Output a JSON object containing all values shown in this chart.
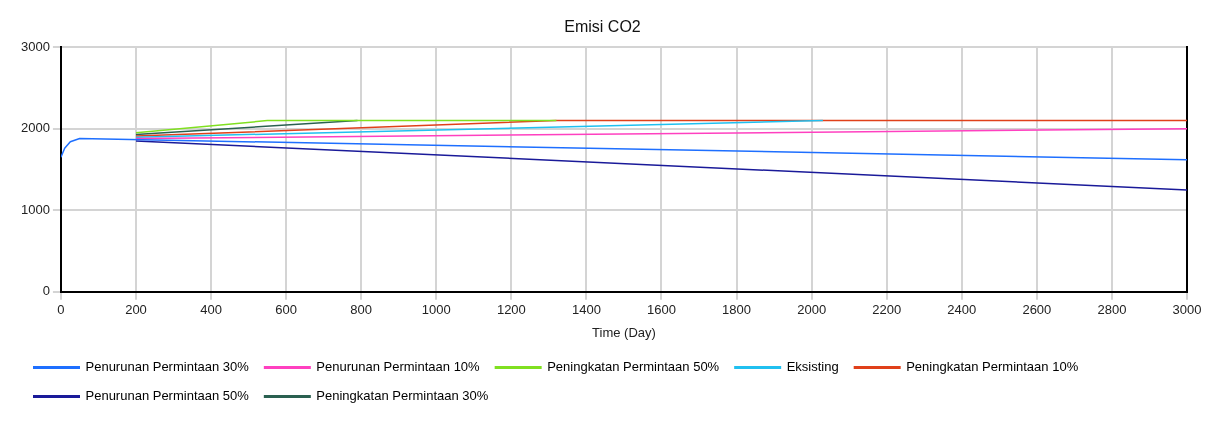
{
  "chart_data": {
    "type": "line",
    "title": "Emisi CO2",
    "xlabel": "Time (Day)",
    "xlim": [
      0,
      3000
    ],
    "xticks": [
      0,
      200,
      400,
      600,
      800,
      1000,
      1200,
      1400,
      1600,
      1800,
      2000,
      2200,
      2400,
      2600,
      2800,
      3000
    ],
    "ylim": [
      0,
      3000
    ],
    "yticks": [
      0,
      1000,
      2000,
      3000
    ],
    "grid": true,
    "legend": "bottom",
    "marker": "none",
    "line_style": "solid",
    "series": [
      {
        "name": "Penurunan Permintaan 30%",
        "color": "#1e6fff",
        "x": [
          0,
          10,
          25,
          50,
          3000
        ],
        "values": [
          1650,
          1760,
          1840,
          1880,
          1620
        ]
      },
      {
        "name": "Penurunan Permintaan 10%",
        "color": "#ff40c0",
        "x": [
          200,
          3000
        ],
        "values": [
          1880,
          2000
        ]
      },
      {
        "name": "Peningkatan Permintaan 50%",
        "color": "#80e020",
        "x": [
          200,
          550,
          1320
        ],
        "values": [
          1950,
          2100,
          2100
        ]
      },
      {
        "name": "Eksisting",
        "color": "#20c0f0",
        "x": [
          200,
          2030
        ],
        "values": [
          1895,
          2100
        ]
      },
      {
        "name": "Peningkatan Permintaan 10%",
        "color": "#e0401a",
        "x": [
          200,
          1320,
          3000
        ],
        "values": [
          1910,
          2100,
          2100
        ]
      },
      {
        "name": "Penurunan Permintaan 50%",
        "color": "#1a1a99",
        "x": [
          200,
          3000
        ],
        "values": [
          1850,
          1250
        ]
      },
      {
        "name": "Peningkatan Permintaan 30%",
        "color": "#2a6050",
        "x": [
          200,
          790
        ],
        "values": [
          1930,
          2100
        ]
      }
    ]
  }
}
